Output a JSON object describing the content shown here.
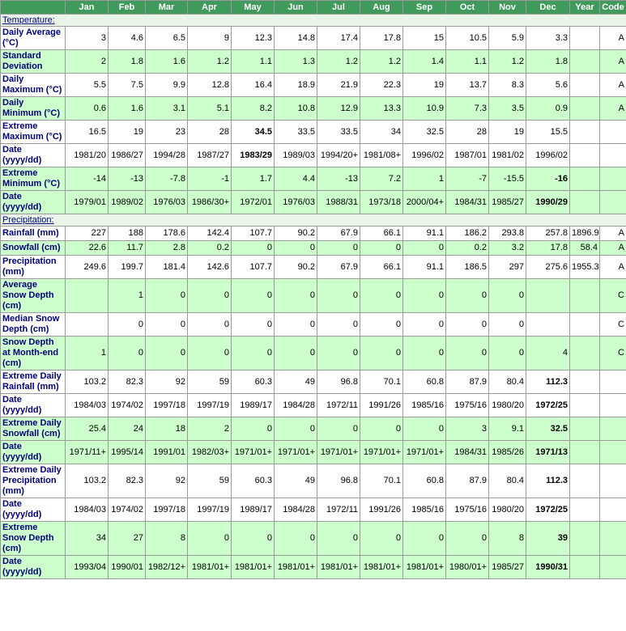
{
  "table": {
    "header": [
      "Jan",
      "Feb",
      "Mar",
      "Apr",
      "May",
      "Jun",
      "Jul",
      "Aug",
      "Sep",
      "Oct",
      "Nov",
      "Dec",
      "Year",
      "Code"
    ],
    "sections": [
      {
        "title": "Temperature:",
        "rows": [
          {
            "label": "Daily Average (°C)",
            "shaded": false,
            "cells": [
              3,
              4.6,
              6.5,
              9,
              12.3,
              14.8,
              17.4,
              17.8,
              15,
              10.5,
              5.9,
              3.3,
              null,
              "A"
            ]
          },
          {
            "label": "Standard Deviation",
            "shaded": true,
            "cells": [
              2,
              1.8,
              1.6,
              1.2,
              1.1,
              1.3,
              1.2,
              1.2,
              1.4,
              1.1,
              1.2,
              1.8,
              null,
              "A"
            ]
          },
          {
            "label": "Daily Maximum (°C)",
            "shaded": false,
            "cells": [
              5.5,
              7.5,
              9.9,
              12.8,
              16.4,
              18.9,
              21.9,
              22.3,
              19,
              13.7,
              8.3,
              5.6,
              null,
              "A"
            ]
          },
          {
            "label": "Daily Minimum (°C)",
            "shaded": true,
            "cells": [
              0.6,
              1.6,
              3.1,
              5.1,
              8.2,
              10.8,
              12.9,
              13.3,
              10.9,
              7.3,
              3.5,
              0.9,
              null,
              "A"
            ]
          },
          {
            "label": "Extreme Maximum (°C)",
            "shaded": false,
            "bold": [
              4
            ],
            "cells": [
              16.5,
              19,
              23,
              28,
              34.5,
              33.5,
              33.5,
              34,
              32.5,
              28,
              19,
              15.5,
              null,
              null
            ]
          },
          {
            "label": "Date (yyyy/dd)",
            "shaded": false,
            "bold": [
              4
            ],
            "cells": [
              "1981/20",
              "1986/27",
              "1994/28",
              "1987/27",
              "1983/29",
              "1989/03",
              "1994/20+",
              "1981/08+",
              "1996/02",
              "1987/01",
              "1981/02",
              "1996/02",
              null,
              null
            ]
          },
          {
            "label": "Extreme Minimum (°C)",
            "shaded": true,
            "bold": [
              11
            ],
            "cells": [
              -14,
              -13,
              -7.8,
              -1,
              1.7,
              4.4,
              -13,
              7.2,
              1,
              -7,
              -15.5,
              -16,
              null,
              null
            ]
          },
          {
            "label": "Date (yyyy/dd)",
            "shaded": true,
            "bold": [
              11
            ],
            "cells": [
              "1979/01",
              "1989/02",
              "1976/03",
              "1986/30+",
              "1972/01",
              "1976/03",
              "1988/31",
              "1973/18",
              "2000/04+",
              "1984/31",
              "1985/27",
              "1990/29",
              null,
              null
            ]
          }
        ]
      },
      {
        "title": "Precipitation:",
        "rows": [
          {
            "label": "Rainfall (mm)",
            "shaded": false,
            "cells": [
              227,
              188,
              178.6,
              142.4,
              107.7,
              90.2,
              67.9,
              66.1,
              91.1,
              186.2,
              293.8,
              257.8,
              1896.9,
              "A"
            ]
          },
          {
            "label": "Snowfall (cm)",
            "shaded": true,
            "cells": [
              22.6,
              11.7,
              2.8,
              0.2,
              0,
              0,
              0,
              0,
              0,
              0.2,
              3.2,
              17.8,
              58.4,
              "A"
            ]
          },
          {
            "label": "Precipitation (mm)",
            "shaded": false,
            "cells": [
              249.6,
              199.7,
              181.4,
              142.6,
              107.7,
              90.2,
              67.9,
              66.1,
              91.1,
              186.5,
              297,
              275.6,
              1955.3,
              "A"
            ]
          },
          {
            "label": "Average Snow Depth (cm)",
            "shaded": true,
            "cells": [
              null,
              1,
              0,
              0,
              0,
              0,
              0,
              0,
              0,
              0,
              0,
              null,
              null,
              "C"
            ]
          },
          {
            "label": "Median Snow Depth (cm)",
            "shaded": false,
            "cells": [
              null,
              0,
              0,
              0,
              0,
              0,
              0,
              0,
              0,
              0,
              0,
              null,
              null,
              "C"
            ]
          },
          {
            "label": "Snow Depth at Month-end (cm)",
            "shaded": true,
            "cells": [
              1,
              0,
              0,
              0,
              0,
              0,
              0,
              0,
              0,
              0,
              0,
              4,
              null,
              "C"
            ]
          },
          {
            "label": "Extreme Daily Rainfall (mm)",
            "shaded": false,
            "bold": [
              11
            ],
            "cells": [
              103.2,
              82.3,
              92,
              59,
              60.3,
              49,
              96.8,
              70.1,
              60.8,
              87.9,
              80.4,
              112.3,
              null,
              null
            ]
          },
          {
            "label": "Date (yyyy/dd)",
            "shaded": false,
            "bold": [
              11
            ],
            "cells": [
              "1984/03",
              "1974/02",
              "1997/18",
              "1997/19",
              "1989/17",
              "1984/28",
              "1972/11",
              "1991/26",
              "1985/16",
              "1975/16",
              "1980/20",
              "1972/25",
              null,
              null
            ]
          },
          {
            "label": "Extreme Daily Snowfall (cm)",
            "shaded": true,
            "bold": [
              11
            ],
            "cells": [
              25.4,
              24,
              18,
              2,
              0,
              0,
              0,
              0,
              0,
              3,
              9.1,
              32.5,
              null,
              null
            ]
          },
          {
            "label": "Date (yyyy/dd)",
            "shaded": true,
            "bold": [
              11
            ],
            "cells": [
              "1971/11+",
              "1995/14",
              "1991/01",
              "1982/03+",
              "1971/01+",
              "1971/01+",
              "1971/01+",
              "1971/01+",
              "1971/01+",
              "1984/31",
              "1985/26",
              "1971/13",
              null,
              null
            ]
          },
          {
            "label": "Extreme Daily Precipitation (mm)",
            "shaded": false,
            "bold": [
              11
            ],
            "cells": [
              103.2,
              82.3,
              92,
              59,
              60.3,
              49,
              96.8,
              70.1,
              60.8,
              87.9,
              80.4,
              112.3,
              null,
              null
            ]
          },
          {
            "label": "Date (yyyy/dd)",
            "shaded": false,
            "bold": [
              11
            ],
            "cells": [
              "1984/03",
              "1974/02",
              "1997/18",
              "1997/19",
              "1989/17",
              "1984/28",
              "1972/11",
              "1991/26",
              "1985/16",
              "1975/16",
              "1980/20",
              "1972/25",
              null,
              null
            ]
          },
          {
            "label": "Extreme Snow Depth (cm)",
            "shaded": true,
            "bold": [
              11
            ],
            "cells": [
              34,
              27,
              8,
              0,
              0,
              0,
              0,
              0,
              0,
              0,
              8,
              39,
              null,
              null
            ]
          },
          {
            "label": "Date (yyyy/dd)",
            "shaded": true,
            "bold": [
              11
            ],
            "cells": [
              "1993/04",
              "1990/01",
              "1982/12+",
              "1981/01+",
              "1981/01+",
              "1981/01+",
              "1981/01+",
              "1981/01+",
              "1981/01+",
              "1980/01+",
              "1985/27",
              "1990/31",
              null,
              null
            ]
          }
        ]
      }
    ]
  }
}
